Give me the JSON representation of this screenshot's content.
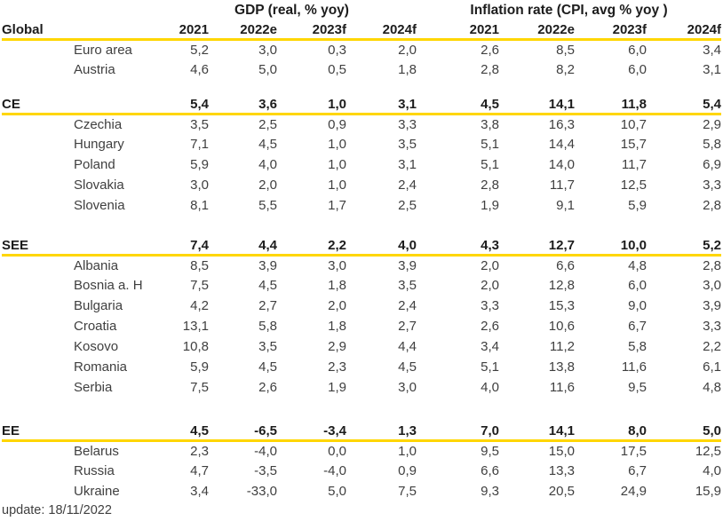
{
  "chart_data": {
    "type": "table",
    "group_headers": {
      "gdp": "GDP (real, % yoy)",
      "inflation": "Inflation rate (CPI, avg % yoy )"
    },
    "corner_label": "Global",
    "year_headers": [
      "2021",
      "2022e",
      "2023f",
      "2024f"
    ],
    "sections": [
      {
        "name": "",
        "rows": [
          {
            "label": "Euro area",
            "gdp": [
              "5,2",
              "3,0",
              "0,3",
              "2,0"
            ],
            "cpi": [
              "2,6",
              "8,5",
              "6,0",
              "3,4"
            ]
          },
          {
            "label": "Austria",
            "gdp": [
              "4,6",
              "5,0",
              "0,5",
              "1,8"
            ],
            "cpi": [
              "2,8",
              "8,2",
              "6,0",
              "3,1"
            ]
          }
        ]
      },
      {
        "name": "CE",
        "totals": {
          "gdp": [
            "5,4",
            "3,6",
            "1,0",
            "3,1"
          ],
          "cpi": [
            "4,5",
            "14,1",
            "11,8",
            "5,4"
          ]
        },
        "rows": [
          {
            "label": "Czechia",
            "gdp": [
              "3,5",
              "2,5",
              "0,9",
              "3,3"
            ],
            "cpi": [
              "3,8",
              "16,3",
              "10,7",
              "2,9"
            ]
          },
          {
            "label": "Hungary",
            "gdp": [
              "7,1",
              "4,5",
              "1,0",
              "3,5"
            ],
            "cpi": [
              "5,1",
              "14,4",
              "15,7",
              "5,8"
            ]
          },
          {
            "label": "Poland",
            "gdp": [
              "5,9",
              "4,0",
              "1,0",
              "3,1"
            ],
            "cpi": [
              "5,1",
              "14,0",
              "11,7",
              "6,9"
            ]
          },
          {
            "label": "Slovakia",
            "gdp": [
              "3,0",
              "2,0",
              "1,0",
              "2,4"
            ],
            "cpi": [
              "2,8",
              "11,7",
              "12,5",
              "3,3"
            ]
          },
          {
            "label": "Slovenia",
            "gdp": [
              "8,1",
              "5,5",
              "1,7",
              "2,5"
            ],
            "cpi": [
              "1,9",
              "9,1",
              "5,9",
              "2,8"
            ]
          }
        ]
      },
      {
        "name": "SEE",
        "totals": {
          "gdp": [
            "7,4",
            "4,4",
            "2,2",
            "4,0"
          ],
          "cpi": [
            "4,3",
            "12,7",
            "10,0",
            "5,2"
          ]
        },
        "rows": [
          {
            "label": "Albania",
            "gdp": [
              "8,5",
              "3,9",
              "3,0",
              "3,9"
            ],
            "cpi": [
              "2,0",
              "6,6",
              "4,8",
              "2,8"
            ]
          },
          {
            "label": "Bosnia a. H",
            "gdp": [
              "7,5",
              "4,5",
              "1,8",
              "3,5"
            ],
            "cpi": [
              "2,0",
              "12,8",
              "6,0",
              "3,0"
            ]
          },
          {
            "label": "Bulgaria",
            "gdp": [
              "4,2",
              "2,7",
              "2,0",
              "2,4"
            ],
            "cpi": [
              "3,3",
              "15,3",
              "9,0",
              "3,9"
            ]
          },
          {
            "label": "Croatia",
            "gdp": [
              "13,1",
              "5,8",
              "1,8",
              "2,7"
            ],
            "cpi": [
              "2,6",
              "10,6",
              "6,7",
              "3,3"
            ]
          },
          {
            "label": "Kosovo",
            "gdp": [
              "10,8",
              "3,5",
              "2,9",
              "4,4"
            ],
            "cpi": [
              "3,4",
              "11,2",
              "5,8",
              "2,2"
            ]
          },
          {
            "label": "Romania",
            "gdp": [
              "5,9",
              "4,5",
              "2,3",
              "4,5"
            ],
            "cpi": [
              "5,1",
              "13,8",
              "11,6",
              "6,1"
            ]
          },
          {
            "label": "Serbia",
            "gdp": [
              "7,5",
              "2,6",
              "1,9",
              "3,0"
            ],
            "cpi": [
              "4,0",
              "11,6",
              "9,5",
              "4,8"
            ]
          }
        ]
      },
      {
        "name": "EE",
        "totals": {
          "gdp": [
            "4,5",
            "-6,5",
            "-3,4",
            "1,3"
          ],
          "cpi": [
            "7,0",
            "14,1",
            "8,0",
            "5,0"
          ]
        },
        "rows": [
          {
            "label": "Belarus",
            "gdp": [
              "2,3",
              "-4,0",
              "0,0",
              "1,0"
            ],
            "cpi": [
              "9,5",
              "15,0",
              "17,5",
              "12,5"
            ]
          },
          {
            "label": "Russia",
            "gdp": [
              "4,7",
              "-3,5",
              "-4,0",
              "0,9"
            ],
            "cpi": [
              "6,6",
              "13,3",
              "6,7",
              "4,0"
            ]
          },
          {
            "label": "Ukraine",
            "gdp": [
              "3,4",
              "-33,0",
              "5,0",
              "7,5"
            ],
            "cpi": [
              "9,3",
              "20,5",
              "24,9",
              "15,9"
            ]
          }
        ]
      }
    ],
    "footer": "update: 18/11/2022"
  },
  "colors": {
    "accent_line": "#FFD600",
    "text": "#3F3F3F",
    "bold_text": "#1C1C1C",
    "background": "#FFFFFF"
  }
}
